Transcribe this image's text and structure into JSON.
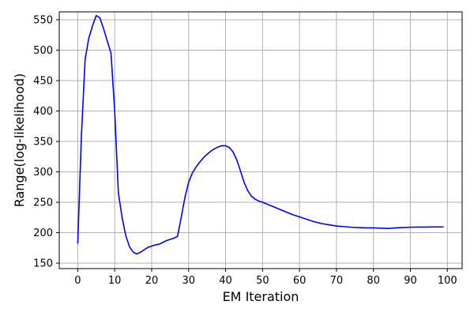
{
  "chart_data": {
    "type": "line",
    "title": "",
    "xlabel": "EM Iteration",
    "ylabel": "Range(log-likelihood)",
    "xlim": [
      -5,
      104
    ],
    "ylim": [
      141,
      563
    ],
    "xticks": [
      0,
      10,
      20,
      30,
      40,
      50,
      60,
      70,
      80,
      90,
      100
    ],
    "yticks": [
      150,
      200,
      250,
      300,
      350,
      400,
      450,
      500,
      550
    ],
    "grid": true,
    "legend": "none",
    "series": [
      {
        "color": "#0000ff",
        "x": [
          0,
          1,
          2,
          3,
          4,
          5,
          6,
          7,
          8,
          9,
          10,
          11,
          12,
          13,
          14,
          15,
          16,
          17,
          18,
          19,
          20,
          21,
          22,
          23,
          24,
          25,
          26,
          27,
          28,
          29,
          30,
          31,
          32,
          33,
          34,
          35,
          36,
          37,
          38,
          39,
          40,
          41,
          42,
          43,
          44,
          45,
          46,
          47,
          48,
          49,
          50,
          52,
          54,
          56,
          58,
          60,
          62,
          64,
          66,
          68,
          70,
          72,
          74,
          76,
          78,
          80,
          82,
          84,
          86,
          88,
          90,
          92,
          94,
          96,
          99
        ],
        "y": [
          182,
          360,
          485,
          520,
          540,
          557,
          553,
          535,
          515,
          495,
          400,
          265,
          225,
          195,
          177,
          168,
          165,
          168,
          172,
          176,
          178,
          180,
          181,
          184,
          187,
          189,
          191,
          194,
          225,
          258,
          283,
          298,
          308,
          316,
          323,
          329,
          334,
          338,
          341,
          343,
          343,
          340,
          333,
          320,
          302,
          283,
          269,
          260,
          255,
          252,
          250,
          245,
          240,
          235,
          230,
          226,
          222,
          218,
          215,
          213,
          211,
          210,
          209,
          208.5,
          208,
          208,
          207.5,
          207,
          208,
          208.5,
          209,
          209.2,
          209.3,
          209.4,
          209.5
        ]
      }
    ]
  }
}
